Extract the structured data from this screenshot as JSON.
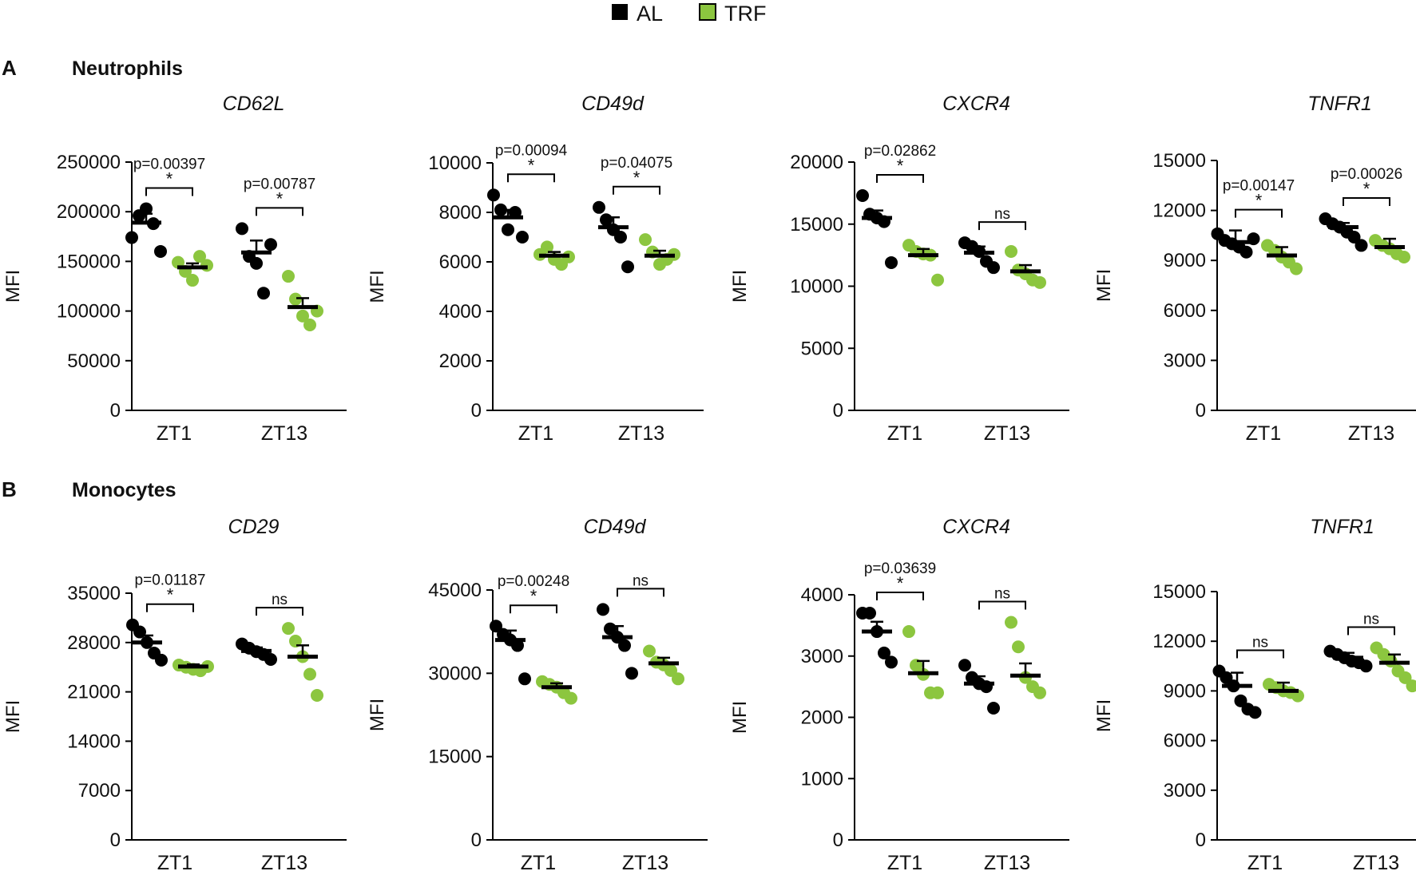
{
  "colors": {
    "AL": "#000000",
    "TRF": "#8cc63f",
    "axis": "#000000"
  },
  "legend": [
    {
      "label": "AL",
      "color": "#000000"
    },
    {
      "label": "TRF",
      "color": "#8cc63f"
    }
  ],
  "sections": [
    {
      "letter": "A",
      "title": "Neutrophils"
    },
    {
      "letter": "B",
      "title": "Monocytes"
    }
  ],
  "chart_data": [
    {
      "type": "scatter",
      "section": "A",
      "title": "CD62L",
      "ylabel": "MFI",
      "ylim": [
        0,
        250000
      ],
      "yticks": [
        0,
        50000,
        100000,
        150000,
        200000,
        250000
      ],
      "categories": [
        "ZT1",
        "ZT13"
      ],
      "series": [
        {
          "name": "AL",
          "color": "#000000",
          "points": [
            [
              174000,
              196000,
              203000,
              188000,
              160000
            ],
            [
              183000,
              155000,
              148000,
              118000,
              167000
            ]
          ],
          "mean": [
            189000,
            159000
          ],
          "sem": [
            9000,
            12000
          ]
        },
        {
          "name": "TRF",
          "color": "#8cc63f",
          "points": [
            [
              149000,
              140000,
              131000,
              155000,
              146000
            ],
            [
              135000,
              112000,
              95000,
              86000,
              100000
            ]
          ],
          "mean": [
            144000,
            104000
          ],
          "sem": [
            4000,
            9000
          ]
        }
      ],
      "annotations": [
        {
          "category": "ZT1",
          "p": "p=0.00397",
          "sig": "*"
        },
        {
          "category": "ZT13",
          "p": "p=0.00787",
          "sig": "*"
        }
      ]
    },
    {
      "type": "scatter",
      "section": "A",
      "title": "CD49d",
      "ylabel": "MFI",
      "ylim": [
        0,
        10000
      ],
      "yticks": [
        0,
        2000,
        4000,
        6000,
        8000,
        10000
      ],
      "categories": [
        "ZT1",
        "ZT13"
      ],
      "series": [
        {
          "name": "AL",
          "color": "#000000",
          "points": [
            [
              8700,
              8100,
              7300,
              8000,
              7000
            ],
            [
              8200,
              7700,
              7300,
              7000,
              5800
            ]
          ],
          "mean": [
            7800,
            7400
          ],
          "sem": [
            300,
            400
          ]
        },
        {
          "name": "TRF",
          "color": "#8cc63f",
          "points": [
            [
              6300,
              6600,
              6100,
              5900,
              6200
            ],
            [
              6900,
              6400,
              5900,
              6100,
              6300
            ]
          ],
          "mean": [
            6250,
            6250
          ],
          "sem": [
            150,
            200
          ]
        }
      ],
      "annotations": [
        {
          "category": "ZT1",
          "p": "p=0.00094",
          "sig": "*"
        },
        {
          "category": "ZT13",
          "p": "p=0.04075",
          "sig": "*"
        }
      ]
    },
    {
      "type": "scatter",
      "section": "A",
      "title": "CXCR4",
      "ylabel": "MFI",
      "ylim": [
        0,
        20000
      ],
      "yticks": [
        0,
        5000,
        10000,
        15000,
        20000
      ],
      "categories": [
        "ZT1",
        "ZT13"
      ],
      "series": [
        {
          "name": "AL",
          "color": "#000000",
          "points": [
            [
              17300,
              15800,
              15500,
              15200,
              11900
            ],
            [
              13500,
              13200,
              12800,
              12000,
              11500
            ]
          ],
          "mean": [
            15500,
            12700
          ],
          "sem": [
            600,
            500
          ]
        },
        {
          "name": "TRF",
          "color": "#8cc63f",
          "points": [
            [
              13300,
              12800,
              12600,
              12500,
              10500
            ],
            [
              12800,
              11300,
              11000,
              10500,
              10300
            ]
          ],
          "mean": [
            12500,
            11200
          ],
          "sem": [
            500,
            500
          ]
        }
      ],
      "annotations": [
        {
          "category": "ZT1",
          "p": "p=0.02862",
          "sig": "*"
        },
        {
          "category": "ZT13",
          "p": "",
          "sig": "ns"
        }
      ]
    },
    {
      "type": "scatter",
      "section": "A",
      "title": "TNFR1",
      "ylabel": "MFI",
      "ylim": [
        0,
        15000
      ],
      "yticks": [
        0,
        3000,
        6000,
        9000,
        12000,
        15000
      ],
      "categories": [
        "ZT1",
        "ZT13"
      ],
      "series": [
        {
          "name": "AL",
          "color": "#000000",
          "points": [
            [
              10600,
              10200,
              10000,
              9800,
              9500,
              10300
            ],
            [
              11500,
              11200,
              11000,
              10700,
              10400,
              9900
            ]
          ],
          "mean": [
            10100,
            11000
          ],
          "sem": [
            700,
            250
          ]
        },
        {
          "name": "TRF",
          "color": "#8cc63f",
          "points": [
            [
              9900,
              9600,
              9200,
              8900,
              8500
            ],
            [
              10200,
              9900,
              9700,
              9400,
              9200
            ]
          ],
          "mean": [
            9300,
            9800
          ],
          "sem": [
            500,
            500
          ]
        }
      ],
      "annotations": [
        {
          "category": "ZT1",
          "p": "p=0.00147",
          "sig": "*"
        },
        {
          "category": "ZT13",
          "p": "p=0.00026",
          "sig": "*"
        }
      ]
    },
    {
      "type": "scatter",
      "section": "B",
      "title": "CD29",
      "ylabel": "MFI",
      "ylim": [
        0,
        35000
      ],
      "yticks": [
        0,
        7000,
        14000,
        21000,
        28000,
        35000
      ],
      "categories": [
        "ZT1",
        "ZT13"
      ],
      "series": [
        {
          "name": "AL",
          "color": "#000000",
          "points": [
            [
              30500,
              29500,
              28000,
              26500,
              25500
            ],
            [
              27800,
              27200,
              26700,
              26300,
              25600
            ]
          ],
          "mean": [
            28000,
            26800
          ],
          "sem": [
            1000,
            500
          ]
        },
        {
          "name": "TRF",
          "color": "#8cc63f",
          "points": [
            [
              24800,
              24500,
              24200,
              24000,
              24600
            ],
            [
              30000,
              28200,
              26000,
              23500,
              20500
            ]
          ],
          "mean": [
            24600,
            26000
          ],
          "sem": [
            300,
            1600
          ]
        }
      ],
      "annotations": [
        {
          "category": "ZT1",
          "p": "p=0.01187",
          "sig": "*"
        },
        {
          "category": "ZT13",
          "p": "",
          "sig": "ns"
        }
      ]
    },
    {
      "type": "scatter",
      "section": "B",
      "title": "CD49d",
      "ylabel": "MFI",
      "ylim": [
        0,
        45000
      ],
      "yticks": [
        0,
        15000,
        30000,
        45000
      ],
      "categories": [
        "ZT1",
        "ZT13"
      ],
      "series": [
        {
          "name": "AL",
          "color": "#000000",
          "points": [
            [
              38500,
              37000,
              36000,
              35000,
              29000
            ],
            [
              41500,
              38000,
              36500,
              35000,
              30000
            ]
          ],
          "mean": [
            36000,
            36500
          ],
          "sem": [
            1700,
            2000
          ]
        },
        {
          "name": "TRF",
          "color": "#8cc63f",
          "points": [
            [
              28500,
              28000,
              27500,
              26500,
              25500
            ],
            [
              34000,
              32000,
              31500,
              30500,
              29000
            ]
          ],
          "mean": [
            27500,
            31800
          ],
          "sem": [
            700,
            1000
          ]
        }
      ],
      "annotations": [
        {
          "category": "ZT1",
          "p": "p=0.00248",
          "sig": "*"
        },
        {
          "category": "ZT13",
          "p": "",
          "sig": "ns"
        }
      ]
    },
    {
      "type": "scatter",
      "section": "B",
      "title": "CXCR4",
      "ylabel": "MFI",
      "ylim": [
        0,
        4000
      ],
      "yticks": [
        0,
        1000,
        2000,
        3000,
        4000
      ],
      "categories": [
        "ZT1",
        "ZT13"
      ],
      "series": [
        {
          "name": "AL",
          "color": "#000000",
          "points": [
            [
              3700,
              3700,
              3400,
              3050,
              2900
            ],
            [
              2850,
              2650,
              2550,
              2500,
              2150
            ]
          ],
          "mean": [
            3400,
            2550
          ],
          "sem": [
            160,
            120
          ]
        },
        {
          "name": "TRF",
          "color": "#8cc63f",
          "points": [
            [
              3400,
              2850,
              2700,
              2400,
              2400
            ],
            [
              3550,
              3150,
              2650,
              2500,
              2400
            ]
          ],
          "mean": [
            2720,
            2680
          ],
          "sem": [
            200,
            200
          ]
        }
      ],
      "annotations": [
        {
          "category": "ZT1",
          "p": "p=0.03639",
          "sig": "*"
        },
        {
          "category": "ZT13",
          "p": "",
          "sig": "ns"
        }
      ]
    },
    {
      "type": "scatter",
      "section": "B",
      "title": "TNFR1",
      "ylabel": "MFI",
      "ylim": [
        0,
        15000
      ],
      "yticks": [
        0,
        3000,
        6000,
        9000,
        12000,
        15000
      ],
      "categories": [
        "ZT1",
        "ZT13"
      ],
      "series": [
        {
          "name": "AL",
          "color": "#000000",
          "points": [
            [
              10200,
              9800,
              9300,
              8400,
              7900,
              7700
            ],
            [
              11400,
              11200,
              11000,
              10800,
              10700,
              10500
            ]
          ],
          "mean": [
            9300,
            11000
          ],
          "sem": [
            800,
            300
          ]
        },
        {
          "name": "TRF",
          "color": "#8cc63f",
          "points": [
            [
              9400,
              9200,
              9000,
              8900,
              8700
            ],
            [
              11600,
              11200,
              10800,
              10200,
              9800,
              9300
            ]
          ],
          "mean": [
            9000,
            10700
          ],
          "sem": [
            500,
            500
          ]
        }
      ],
      "annotations": [
        {
          "category": "ZT1",
          "p": "",
          "sig": "ns"
        },
        {
          "category": "ZT13",
          "p": "",
          "sig": "ns"
        }
      ]
    }
  ]
}
